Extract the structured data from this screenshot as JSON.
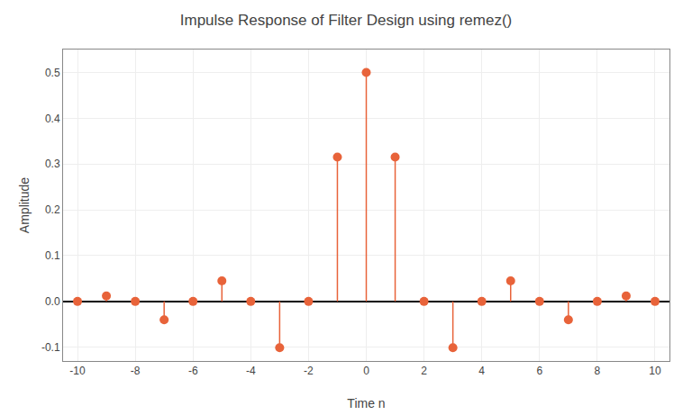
{
  "chart_data": {
    "type": "stem",
    "title": "Impulse Response of Filter Design using remez()",
    "xlabel": "Time n",
    "ylabel": "Amplitude",
    "x": [
      -10,
      -9,
      -8,
      -7,
      -6,
      -5,
      -4,
      -3,
      -2,
      -1,
      0,
      1,
      2,
      3,
      4,
      5,
      6,
      7,
      8,
      9,
      10
    ],
    "values": [
      0.0,
      0.012,
      0.0,
      -0.04,
      0.0,
      0.045,
      0.0,
      -0.101,
      0.0,
      0.315,
      0.5,
      0.315,
      0.0,
      -0.101,
      0.0,
      0.045,
      0.0,
      -0.04,
      0.0,
      0.012,
      0.0
    ],
    "color": "#E8633A",
    "marker": "circle",
    "xlim": [
      -10.5,
      10.5
    ],
    "ylim": [
      -0.13,
      0.55
    ],
    "xticks": [
      -10,
      -8,
      -6,
      -4,
      -2,
      0,
      2,
      4,
      6,
      8,
      10
    ],
    "yticks": [
      -0.1,
      {
        "value": 0,
        "label": "0.0"
      },
      0.1,
      0.2,
      0.3,
      0.4,
      0.5
    ],
    "grid": true
  }
}
